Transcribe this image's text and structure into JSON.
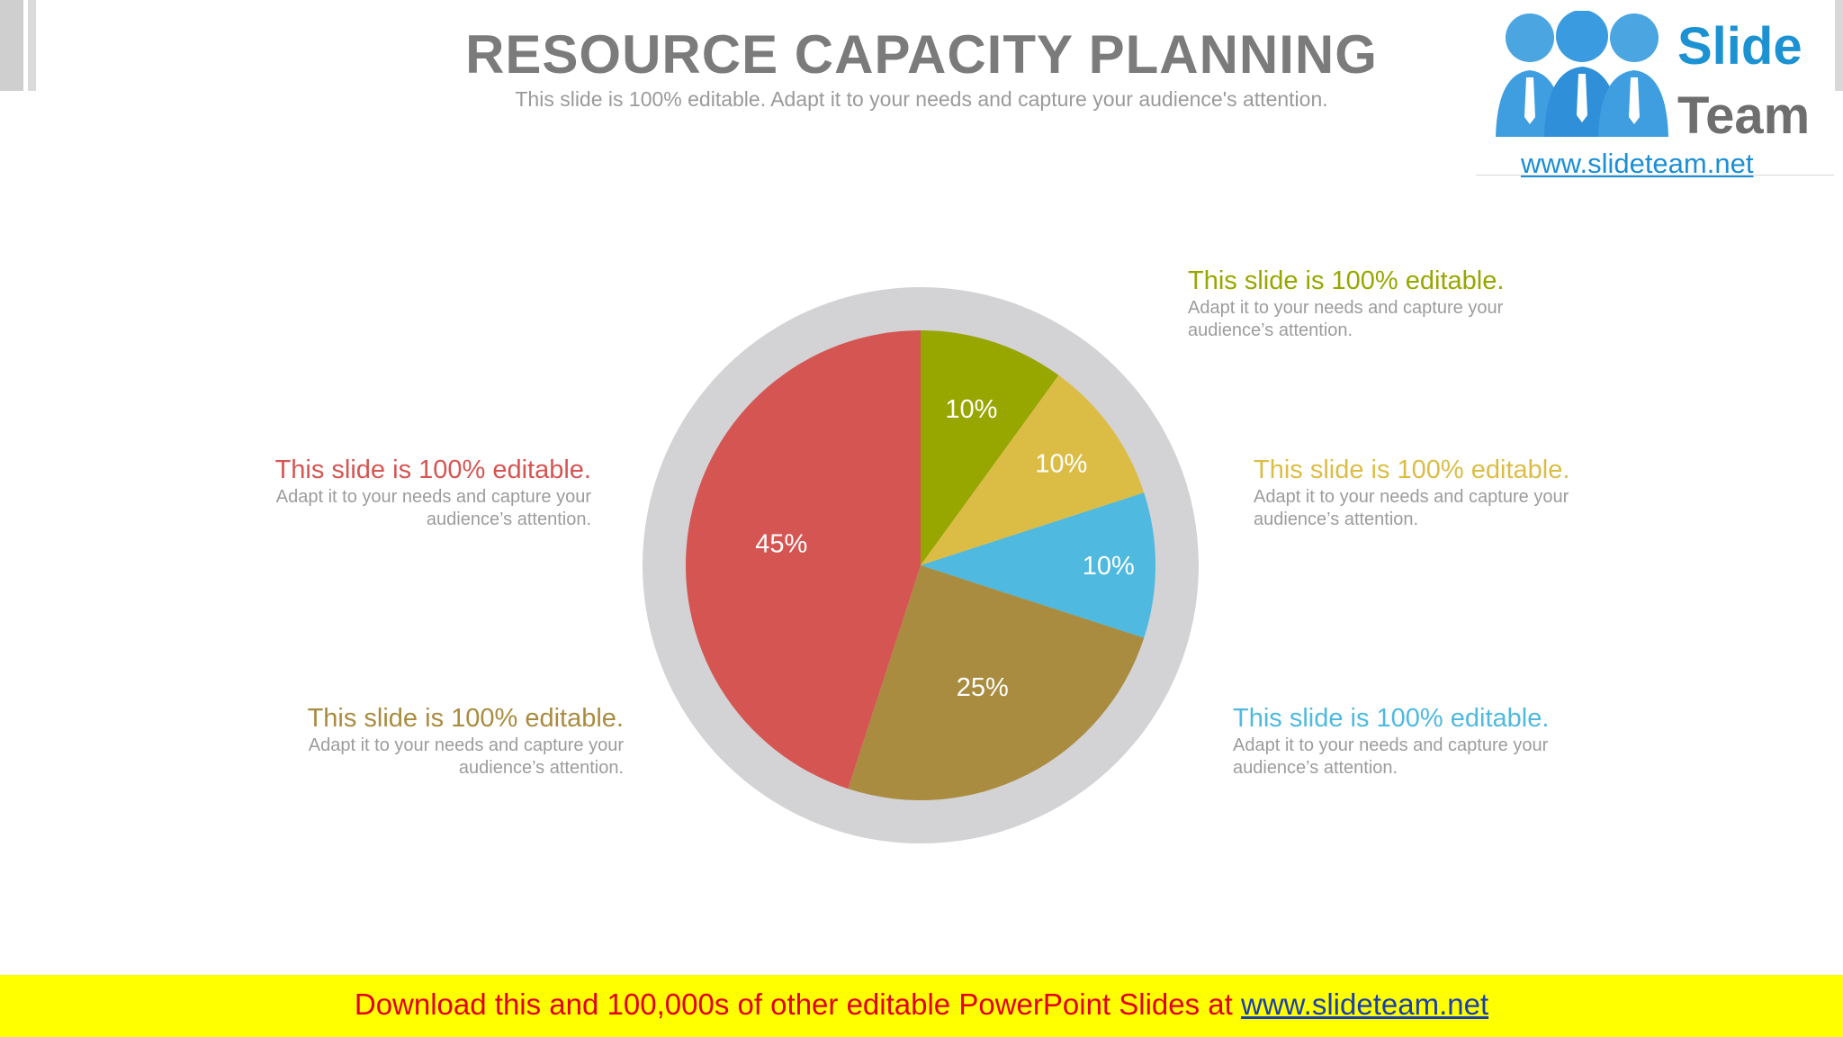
{
  "header": {
    "title": "RESOURCE CAPACITY PLANNING",
    "subtitle": "This slide is 100% editable. Adapt it to your needs and capture your audience's attention."
  },
  "logo": {
    "slide_word": "Slide",
    "team_word": "Team",
    "url": "www.slideteam.net"
  },
  "chart_data": {
    "type": "pie",
    "slices": [
      {
        "label": "10%",
        "value": 10,
        "color": "#98a600"
      },
      {
        "label": "10%",
        "value": 10,
        "color": "#dbbd46"
      },
      {
        "label": "10%",
        "value": 10,
        "color": "#4fb9df"
      },
      {
        "label": "25%",
        "value": 25,
        "color": "#a98c40"
      },
      {
        "label": "45%",
        "value": 45,
        "color": "#d55552"
      }
    ],
    "ring_color": "#d3d2d4"
  },
  "callouts": [
    {
      "title": "This slide is 100% editable.",
      "line1": "Adapt it to your needs and capture your",
      "line2": "audience’s attention.",
      "color": "#98a600"
    },
    {
      "title": "This slide is 100% editable.",
      "line1": "Adapt it to your needs and capture your",
      "line2": "audience’s attention.",
      "color": "#dbbd46"
    },
    {
      "title": "This slide is 100% editable.",
      "line1": "Adapt it to your needs and capture your",
      "line2": "audience’s attention.",
      "color": "#4fb9df"
    },
    {
      "title": "This slide is 100% editable.",
      "line1": "Adapt it to your needs and capture your",
      "line2": "audience’s attention.",
      "color": "#a98c40"
    },
    {
      "title": "This slide is 100% editable.",
      "line1": "Adapt it to your needs and capture your",
      "line2": "audience’s attention.",
      "color": "#d55552"
    }
  ],
  "footer": {
    "text": "Download this and 100,000s of other editable PowerPoint Slides at ",
    "link": "www.slideteam.net"
  }
}
